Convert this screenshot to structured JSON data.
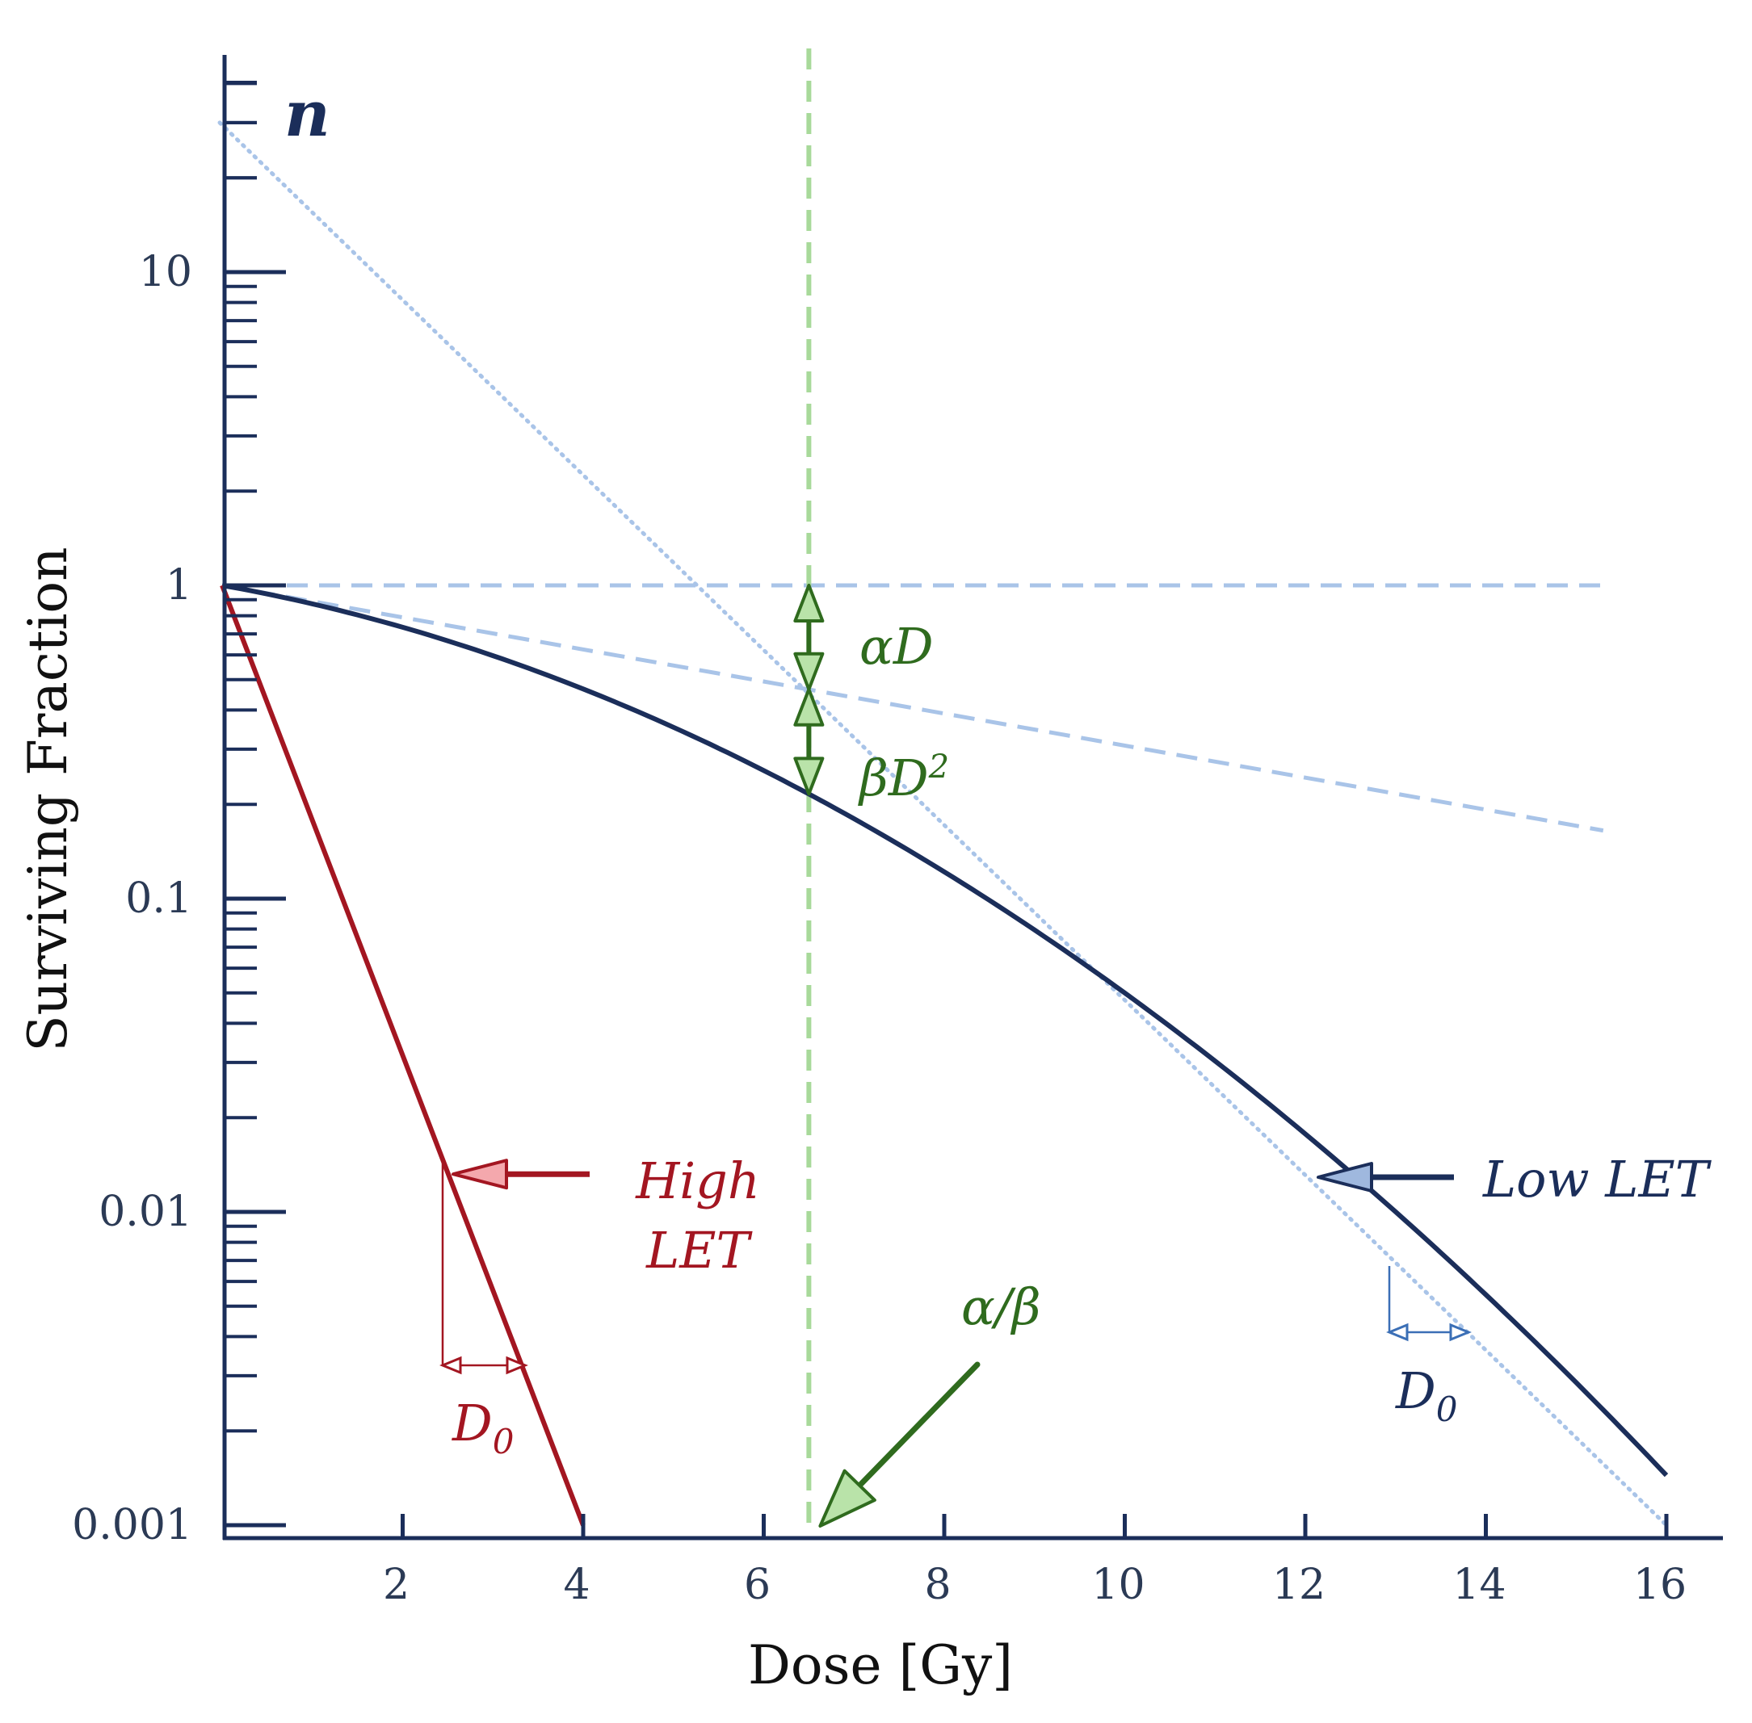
{
  "colors": {
    "axis": "#1b2e5a",
    "low_let": "#1b2e5a",
    "high_let": "#a31621",
    "guide": "#a9c4e8",
    "alpha_beta": "#a8d99a",
    "green_text": "#2f6b1e",
    "green_fill": "#b9e3a9",
    "red_fill": "#f4a8ad",
    "blue_fill": "#9fb8de"
  },
  "chart_data": {
    "type": "line",
    "xlabel": "Dose [Gy]",
    "ylabel": "Surviving Fraction",
    "xscale": "linear",
    "yscale": "log",
    "xlim": [
      0,
      16
    ],
    "ylim": [
      0.001,
      40
    ],
    "x_ticks": [
      2,
      4,
      6,
      8,
      10,
      12,
      14,
      16
    ],
    "x_tick_labels": [
      "2",
      "4",
      "6",
      "8",
      "10",
      "12",
      "14",
      "16"
    ],
    "y_ticks": [
      0.001,
      0.01,
      0.1,
      1,
      10
    ],
    "y_tick_labels": [
      "0.001",
      "0.01",
      "0.1",
      "1",
      "10"
    ],
    "series": [
      {
        "name": "Low LET",
        "style": "solid",
        "model": "linear-quadratic",
        "alpha": 0.1176,
        "beta": 0.0182,
        "x_range": [
          0,
          16
        ]
      },
      {
        "name": "High LET",
        "style": "solid",
        "model": "exponential",
        "d0": 0.579,
        "x_range": [
          0,
          4
        ]
      },
      {
        "name": "extrapolation to n",
        "style": "dotted",
        "points": [
          [
            0,
            30
          ],
          [
            16,
            0.001
          ]
        ]
      },
      {
        "name": "initial slope",
        "style": "dashed",
        "points": [
          [
            0,
            1
          ],
          [
            15.3,
            0.165
          ]
        ]
      },
      {
        "name": "SF = 1",
        "style": "dashed",
        "points": [
          [
            0,
            1
          ],
          [
            15.3,
            1
          ]
        ]
      },
      {
        "name": "alpha/beta dose",
        "style": "dashed",
        "x": 6.5
      }
    ],
    "annotations": {
      "n": "n",
      "alpha_d": "αD",
      "beta_d2_base": "βD",
      "beta_d2_exp": "2",
      "alpha_beta": "α/β",
      "high_let_line1": "High",
      "high_let_line2": "LET",
      "low_let": "Low LET",
      "d0_base": "D",
      "d0_sub": "0"
    }
  }
}
